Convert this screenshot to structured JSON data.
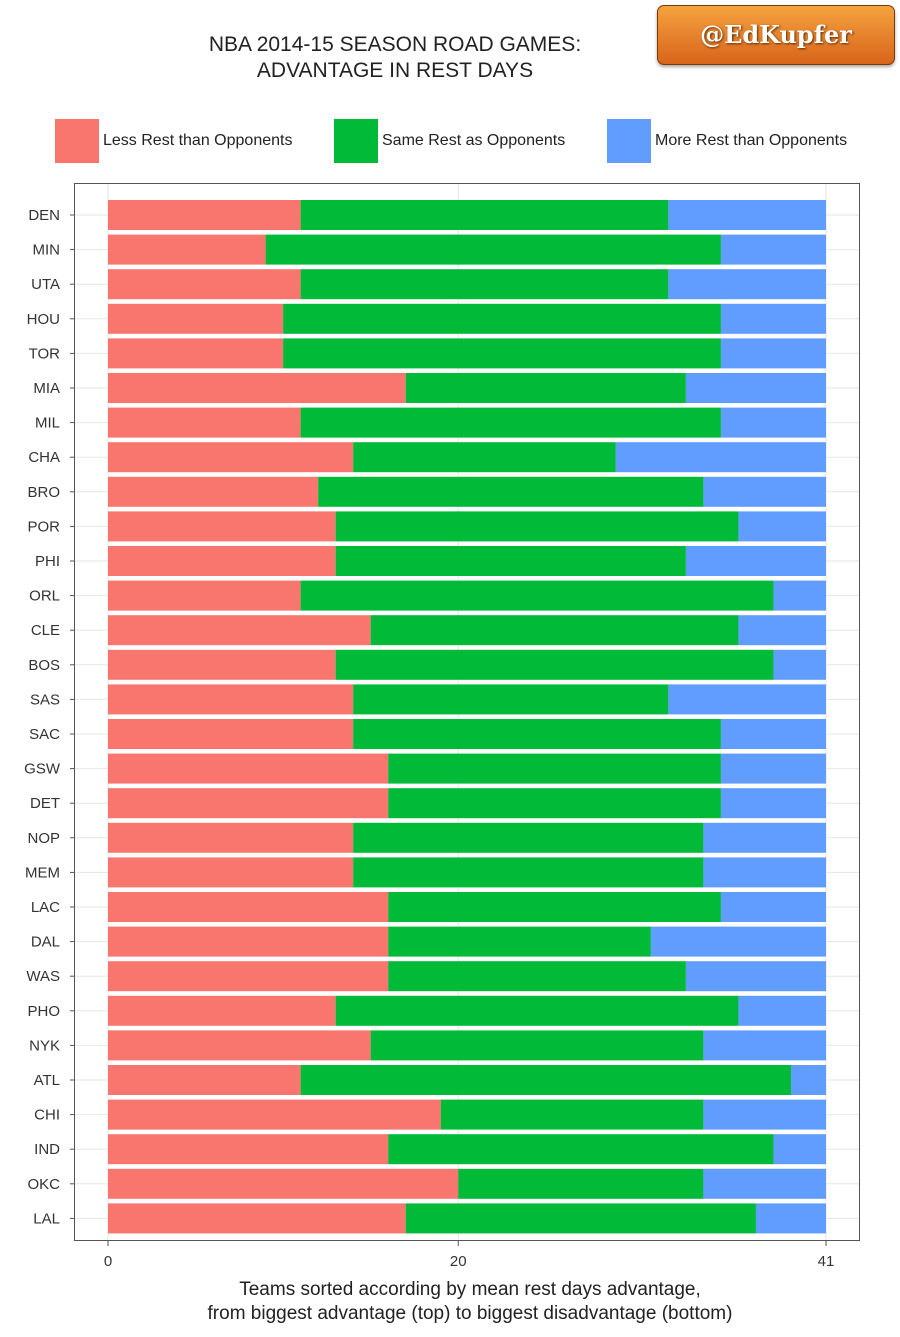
{
  "title_lines": [
    "NBA 2014-15 SEASON ROAD GAMES:",
    "ADVANTAGE IN REST DAYS"
  ],
  "watermark": "@EdKupfer",
  "legend": [
    {
      "label": "Less Rest than Opponents",
      "color": "#f8766d"
    },
    {
      "label": "Same Rest as Opponents",
      "color": "#00ba38"
    },
    {
      "label": "More Rest than Opponents",
      "color": "#619cff"
    }
  ],
  "caption_lines": [
    "Teams sorted according by mean rest days advantage,",
    "from biggest advantage (top) to biggest disadvantage (bottom)"
  ],
  "chart_data": {
    "type": "bar",
    "orientation": "horizontal",
    "stacked": true,
    "categories": [
      "DEN",
      "MIN",
      "UTA",
      "HOU",
      "TOR",
      "MIA",
      "MIL",
      "CHA",
      "BRO",
      "POR",
      "PHI",
      "ORL",
      "CLE",
      "BOS",
      "SAS",
      "SAC",
      "GSW",
      "DET",
      "NOP",
      "MEM",
      "LAC",
      "DAL",
      "WAS",
      "PHO",
      "NYK",
      "ATL",
      "CHI",
      "IND",
      "OKC",
      "LAL"
    ],
    "series": [
      {
        "name": "Less Rest than Opponents",
        "color": "#f8766d",
        "values": [
          11,
          9,
          11,
          10,
          10,
          17,
          11,
          14,
          12,
          13,
          13,
          11,
          15,
          13,
          14,
          14,
          16,
          16,
          14,
          14,
          16,
          16,
          16,
          13,
          15,
          11,
          19,
          16,
          20,
          17
        ]
      },
      {
        "name": "Same Rest as Opponents",
        "color": "#00ba38",
        "values": [
          21,
          26,
          21,
          25,
          25,
          16,
          24,
          15,
          22,
          23,
          20,
          27,
          21,
          25,
          18,
          21,
          19,
          19,
          20,
          20,
          19,
          15,
          17,
          23,
          19,
          28,
          15,
          22,
          14,
          20
        ]
      },
      {
        "name": "More Rest than Opponents",
        "color": "#619cff",
        "values": [
          9,
          6,
          9,
          6,
          6,
          8,
          6,
          12,
          7,
          5,
          8,
          3,
          5,
          3,
          9,
          6,
          6,
          6,
          7,
          7,
          6,
          10,
          8,
          5,
          7,
          2,
          7,
          3,
          7,
          4
        ]
      }
    ],
    "x_ticks": [
      0,
      20,
      41
    ],
    "xlim": [
      0,
      41
    ],
    "xlabel": "Teams sorted according by mean rest days advantage, from biggest advantage (top) to biggest disadvantage (bottom)",
    "grid": true,
    "legend_position": "top"
  }
}
